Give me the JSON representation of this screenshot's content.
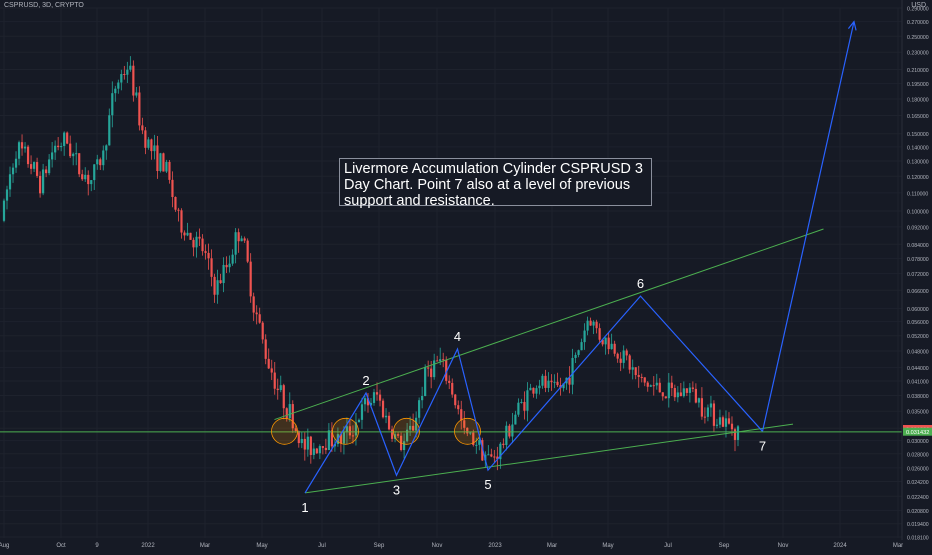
{
  "header": {
    "symbol": "CSPRUSD, 3D, CRYPTO",
    "currency": "USD"
  },
  "annotation": "Livermore Accumulation Cylinder CSPRUSD 3 Day Chart. Point 7 also at a level of previous support and resistance.",
  "colors": {
    "background": "#161a25",
    "up": "#26a69a",
    "down": "#ef5350",
    "channel": "#4caf50",
    "pattern": "#2962ff",
    "horizontal": "#4caf50",
    "highlight": "#ff9800",
    "price_tag": "#ef5350",
    "grid": "#1e222d"
  },
  "chart_data": {
    "type": "candlestick",
    "title": "CSPRUSD, 3D, CRYPTO",
    "y_axis": {
      "unit": "USD",
      "scale": "log",
      "range": [
        0.018,
        0.29
      ],
      "ticks": [
        "0.290000",
        "0.270000",
        "0.250000",
        "0.230000",
        "0.210000",
        "0.195000",
        "0.180000",
        "0.165000",
        "0.150000",
        "0.140000",
        "0.130000",
        "0.120000",
        "0.110000",
        "0.100000",
        "0.092000",
        "0.084000",
        "0.078000",
        "0.072000",
        "0.066000",
        "0.060000",
        "0.056000",
        "0.052000",
        "0.048000",
        "0.044000",
        "0.041000",
        "0.038000",
        "0.035000",
        "0.032000",
        "0.030000",
        "0.028000",
        "0.026000",
        "0.024200",
        "0.022400",
        "0.020800",
        "0.019400",
        "0.018100"
      ]
    },
    "x_axis": {
      "labels": [
        "Aug",
        "Oct",
        "9",
        "2022",
        "Mar",
        "May",
        "Jul",
        "Sep",
        "Nov",
        "2023",
        "Mar",
        "May",
        "Jul",
        "Sep",
        "Nov",
        "2024",
        "Mar"
      ]
    },
    "price_tags": [
      "0.031880",
      "0.031432"
    ],
    "horizontal_level": 0.0314,
    "channel_upper": {
      "start": [
        "2022-05",
        0.0335
      ],
      "end": [
        "2023-11",
        0.091
      ]
    },
    "channel_lower": {
      "start": [
        "2022-06",
        0.0228
      ],
      "end": [
        "2023-10",
        0.0327
      ]
    },
    "points": [
      {
        "label": "1",
        "date": "2022-06",
        "price": 0.0228
      },
      {
        "label": "2",
        "date": "2022-08",
        "price": 0.0385
      },
      {
        "label": "3",
        "date": "2022-09",
        "price": 0.025
      },
      {
        "label": "4",
        "date": "2022-11",
        "price": 0.0485
      },
      {
        "label": "5",
        "date": "2022-12",
        "price": 0.0257
      },
      {
        "label": "6",
        "date": "2023-05",
        "price": 0.064
      },
      {
        "label": "7",
        "date": "2023-09",
        "price": 0.0315
      }
    ],
    "projection": {
      "from": [
        "2023-09",
        0.0315
      ],
      "to": [
        "2023-12",
        0.27
      ]
    },
    "highlight_circles": [
      "2022-05",
      "2022-07",
      "2022-09",
      "2022-11"
    ],
    "trend": [
      [
        0.095,
        0.11
      ],
      [
        0.13,
        0.15
      ],
      [
        0.12,
        0.14
      ],
      [
        0.11,
        0.12
      ],
      [
        0.13,
        0.15
      ],
      [
        0.14,
        0.15
      ],
      [
        0.12,
        0.13
      ],
      [
        0.11,
        0.125
      ],
      [
        0.13,
        0.14
      ],
      [
        0.18,
        0.21
      ],
      [
        0.21,
        0.22
      ],
      [
        0.15,
        0.16
      ],
      [
        0.13,
        0.14
      ],
      [
        0.12,
        0.13
      ],
      [
        0.092,
        0.098
      ],
      [
        0.085,
        0.09
      ],
      [
        0.078,
        0.085
      ],
      [
        0.062,
        0.07
      ],
      [
        0.072,
        0.08
      ],
      [
        0.09,
        0.094
      ],
      [
        0.06,
        0.065
      ],
      [
        0.045,
        0.05
      ],
      [
        0.038,
        0.041
      ],
      [
        0.034,
        0.035
      ],
      [
        0.028,
        0.03
      ],
      [
        0.028,
        0.03
      ],
      [
        0.03,
        0.031
      ],
      [
        0.029,
        0.031
      ],
      [
        0.031,
        0.033
      ],
      [
        0.035,
        0.037
      ],
      [
        0.037,
        0.039
      ],
      [
        0.031,
        0.033
      ],
      [
        0.028,
        0.03
      ],
      [
        0.032,
        0.034
      ],
      [
        0.042,
        0.045
      ],
      [
        0.044,
        0.047
      ],
      [
        0.038,
        0.04
      ],
      [
        0.03,
        0.032
      ],
      [
        0.029,
        0.031
      ],
      [
        0.026,
        0.028
      ],
      [
        0.028,
        0.03
      ],
      [
        0.033,
        0.035
      ],
      [
        0.037,
        0.039
      ],
      [
        0.04,
        0.042
      ],
      [
        0.038,
        0.04
      ],
      [
        0.039,
        0.041
      ],
      [
        0.045,
        0.048
      ],
      [
        0.055,
        0.06
      ],
      [
        0.05,
        0.053
      ],
      [
        0.048,
        0.05
      ],
      [
        0.045,
        0.047
      ],
      [
        0.04,
        0.042
      ],
      [
        0.039,
        0.041
      ],
      [
        0.038,
        0.04
      ],
      [
        0.037,
        0.039
      ],
      [
        0.039,
        0.04
      ],
      [
        0.036,
        0.037
      ],
      [
        0.034,
        0.035
      ],
      [
        0.0325,
        0.033
      ],
      [
        0.0318,
        0.0319
      ]
    ]
  }
}
